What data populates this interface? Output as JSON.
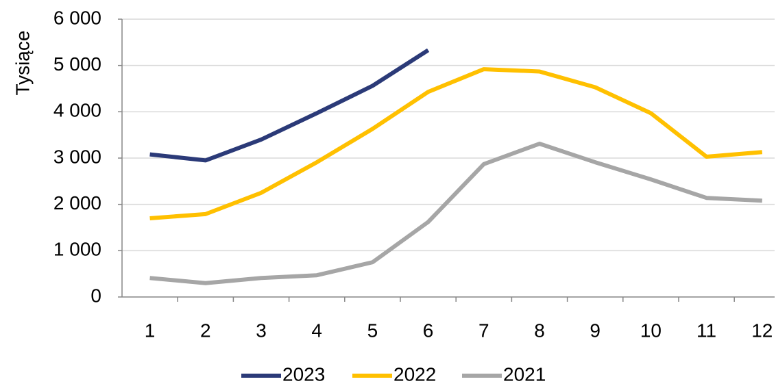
{
  "chart_data": {
    "type": "line",
    "y_label": "Tysiące",
    "categories": [
      "1",
      "2",
      "3",
      "4",
      "5",
      "6",
      "7",
      "8",
      "9",
      "10",
      "11",
      "12"
    ],
    "series": [
      {
        "name": "2023",
        "color": "#2b3a78",
        "values": [
          3080,
          2950,
          3400,
          3970,
          4560,
          5330,
          null,
          null,
          null,
          null,
          null,
          null
        ]
      },
      {
        "name": "2022",
        "color": "#ffc000",
        "values": [
          1700,
          1790,
          2250,
          2910,
          3630,
          4430,
          4920,
          4870,
          4530,
          3970,
          3030,
          3130
        ]
      },
      {
        "name": "2021",
        "color": "#a6a6a6",
        "values": [
          410,
          300,
          410,
          470,
          750,
          1620,
          2870,
          3310,
          2910,
          2540,
          2140,
          2080
        ]
      }
    ],
    "ylim": [
      0,
      6000
    ],
    "yticks": [
      0,
      {
        "value": 1000,
        "label": "1 000"
      },
      {
        "value": 2000,
        "label": "2 000"
      },
      {
        "value": 3000,
        "label": "3 000"
      },
      {
        "value": 4000,
        "label": "4 000"
      },
      {
        "value": 5000,
        "label": "5 000"
      },
      {
        "value": 6000,
        "label": "6 000"
      }
    ],
    "grid": true,
    "legend": "bottom"
  }
}
